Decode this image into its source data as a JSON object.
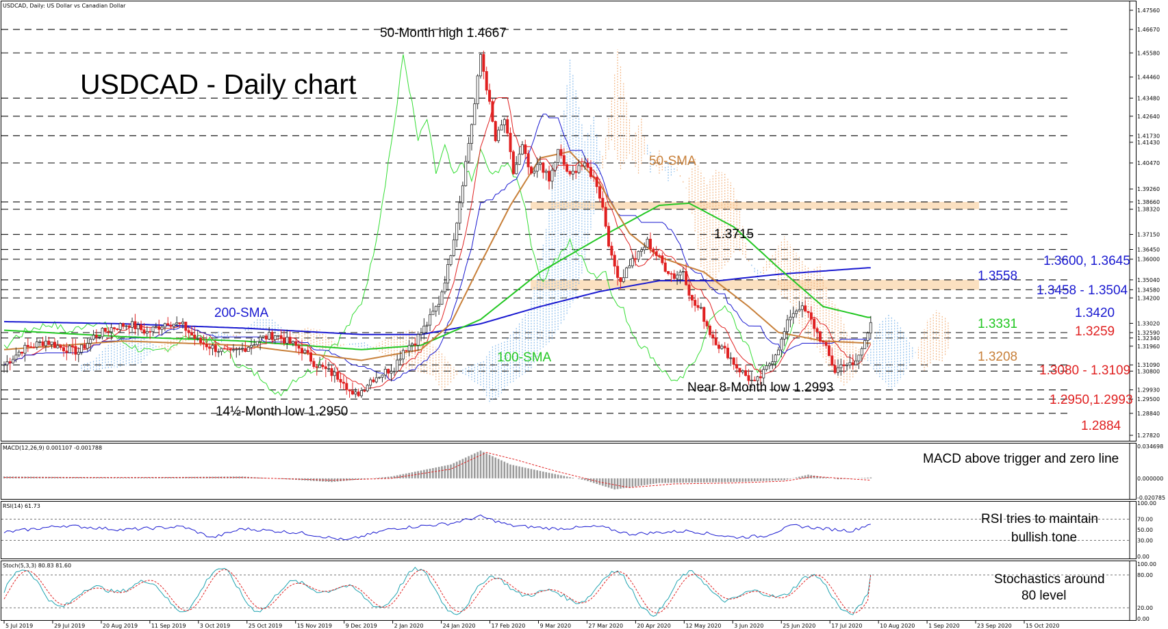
{
  "header": {
    "symbol_info": "USDCAD, Daily:  US Dollar vs Canadian Dollar"
  },
  "colors": {
    "price_up": "#2b2b2b",
    "price_down": "#e02020",
    "sma200": "#1818d0",
    "sma100": "#22c722",
    "sma50": "#c8803a",
    "chikou": "#33dd33",
    "tenkan": "#e02020",
    "kijun": "#1818d0",
    "cloud_blue": "#7fb6ea",
    "cloud_orange": "#f2b07a",
    "zone": "#fbe0c0",
    "macd_hist": "#9a9a9a",
    "rsi": "#1818d0",
    "stoch_k": "#1fa3b0",
    "stoch_d": "#e02020"
  },
  "chart_data": [
    {
      "type": "line",
      "title": "USDCAD - Daily chart",
      "x_ticks": [
        "5 Jul 2019",
        "29 Jul 2019",
        "20 Aug 2019",
        "11 Sep 2019",
        "3 Oct 2019",
        "25 Oct 2019",
        "15 Nov 2019",
        "9 Dec 2019",
        "2 Jan 2020",
        "24 Jan 2020",
        "17 Feb 2020",
        "9 Mar 2020",
        "27 Mar 2020",
        "20 Apr 2020",
        "12 May 2020",
        "3 Jun 2020",
        "25 Jun 2020",
        "17 Jul 2020",
        "10 Aug 2020",
        "1 Sep 2020",
        "23 Sep 2020",
        "15 Oct 2020"
      ],
      "y_ticks": [
        "1.47560",
        "1.46670",
        "1.45580",
        "1.44460",
        "1.43480",
        "1.42640",
        "1.41730",
        "1.41430",
        "1.40470",
        "1.39260",
        "1.38660",
        "1.38320",
        "1.37150",
        "1.36450",
        "1.36000",
        "1.35040",
        "1.34580",
        "1.34200",
        "1.33020",
        "1.32590",
        "1.32340",
        "1.31960",
        "1.31090",
        "1.30800",
        "1.29930",
        "1.29500",
        "1.28840",
        "1.27820"
      ],
      "ylim": [
        1.2782,
        1.4756
      ],
      "horizontal_levels": [
        1.4667,
        1.4558,
        1.4348,
        1.4264,
        1.4173,
        1.4047,
        1.3866,
        1.3832,
        1.3715,
        1.3645,
        1.36,
        1.3504,
        1.3458,
        1.342,
        1.3259,
        1.3234,
        1.3109,
        1.308,
        1.2993,
        1.295,
        1.2884
      ],
      "zones": [
        [
          1.3832,
          1.3866
        ],
        [
          1.3458,
          1.3504
        ]
      ],
      "close_path": [
        [
          0,
          1.311
        ],
        [
          6,
          1.318
        ],
        [
          10,
          1.32
        ],
        [
          14,
          1.322
        ],
        [
          19,
          1.319
        ],
        [
          25,
          1.317
        ],
        [
          30,
          1.324
        ],
        [
          36,
          1.328
        ],
        [
          42,
          1.33
        ],
        [
          48,
          1.326
        ],
        [
          55,
          1.331
        ],
        [
          60,
          1.329
        ],
        [
          65,
          1.322
        ],
        [
          70,
          1.319
        ],
        [
          76,
          1.316
        ],
        [
          81,
          1.319
        ],
        [
          86,
          1.323
        ],
        [
          91,
          1.325
        ],
        [
          96,
          1.321
        ],
        [
          100,
          1.318
        ],
        [
          104,
          1.312
        ],
        [
          106,
          1.31
        ],
        [
          110,
          1.307
        ],
        [
          114,
          1.304
        ],
        [
          117,
          1.296
        ],
        [
          120,
          1.299
        ],
        [
          123,
          1.304
        ],
        [
          127,
          1.307
        ],
        [
          131,
          1.31
        ],
        [
          134,
          1.318
        ],
        [
          138,
          1.322
        ],
        [
          142,
          1.33
        ],
        [
          146,
          1.34
        ],
        [
          149,
          1.356
        ],
        [
          152,
          1.378
        ],
        [
          155,
          1.405
        ],
        [
          158,
          1.432
        ],
        [
          160,
          1.455
        ],
        [
          162,
          1.44
        ],
        [
          165,
          1.415
        ],
        [
          168,
          1.425
        ],
        [
          171,
          1.4
        ],
        [
          174,
          1.412
        ],
        [
          177,
          1.398
        ],
        [
          180,
          1.405
        ],
        [
          183,
          1.396
        ],
        [
          186,
          1.41
        ],
        [
          190,
          1.398
        ],
        [
          193,
          1.404
        ],
        [
          196,
          1.402
        ],
        [
          199,
          1.395
        ],
        [
          201,
          1.384
        ],
        [
          204,
          1.36
        ],
        [
          207,
          1.35
        ],
        [
          210,
          1.358
        ],
        [
          213,
          1.362
        ],
        [
          216,
          1.368
        ],
        [
          219,
          1.362
        ],
        [
          222,
          1.356
        ],
        [
          225,
          1.352
        ],
        [
          228,
          1.355
        ],
        [
          231,
          1.34
        ],
        [
          234,
          1.336
        ],
        [
          237,
          1.326
        ],
        [
          240,
          1.32
        ],
        [
          243,
          1.316
        ],
        [
          246,
          1.31
        ],
        [
          249,
          1.306
        ],
        [
          252,
          1.302
        ],
        [
          255,
          1.307
        ],
        [
          258,
          1.314
        ],
        [
          261,
          1.322
        ],
        [
          264,
          1.334
        ],
        [
          267,
          1.338
        ],
        [
          270,
          1.334
        ],
        [
          273,
          1.326
        ],
        [
          276,
          1.318
        ],
        [
          279,
          1.308
        ],
        [
          282,
          1.312
        ],
        [
          285,
          1.31
        ],
        [
          288,
          1.318
        ],
        [
          291,
          1.332
        ]
      ],
      "series": [
        {
          "name": "200-SMA",
          "values": [
            [
              0,
              1.331
            ],
            [
              40,
              1.33
            ],
            [
              80,
              1.328
            ],
            [
              120,
              1.325
            ],
            [
              140,
              1.325
            ],
            [
              160,
              1.33
            ],
            [
              180,
              1.338
            ],
            [
              200,
              1.345
            ],
            [
              220,
              1.35
            ],
            [
              240,
              1.35
            ],
            [
              260,
              1.353
            ],
            [
              290,
              1.356
            ]
          ]
        },
        {
          "name": "100-SMA",
          "values": [
            [
              0,
              1.327
            ],
            [
              40,
              1.324
            ],
            [
              80,
              1.322
            ],
            [
              120,
              1.318
            ],
            [
              140,
              1.32
            ],
            [
              160,
              1.332
            ],
            [
              180,
              1.354
            ],
            [
              200,
              1.37
            ],
            [
              220,
              1.385
            ],
            [
              230,
              1.386
            ],
            [
              245,
              1.375
            ],
            [
              260,
              1.356
            ],
            [
              275,
              1.338
            ],
            [
              290,
              1.333
            ]
          ]
        },
        {
          "name": "50-SMA",
          "values": [
            [
              0,
              1.318
            ],
            [
              40,
              1.322
            ],
            [
              80,
              1.32
            ],
            [
              120,
              1.313
            ],
            [
              140,
              1.318
            ],
            [
              150,
              1.33
            ],
            [
              160,
              1.358
            ],
            [
              170,
              1.385
            ],
            [
              180,
              1.407
            ],
            [
              190,
              1.41
            ],
            [
              200,
              1.395
            ],
            [
              210,
              1.372
            ],
            [
              220,
              1.361
            ],
            [
              235,
              1.354
            ],
            [
              250,
              1.338
            ],
            [
              260,
              1.326
            ],
            [
              275,
              1.322
            ],
            [
              290,
              1.321
            ]
          ]
        }
      ]
    },
    {
      "type": "bar",
      "title": "MACD(12,26,9) 0.001107 -0.001788",
      "y_ticks": [
        "0.034698",
        "0.000000",
        "-0.020785"
      ],
      "ylim": [
        -0.020785,
        0.034698
      ],
      "histogram": [
        [
          0,
          0.002
        ],
        [
          40,
          0.001
        ],
        [
          80,
          0.002
        ],
        [
          110,
          -0.004
        ],
        [
          130,
          0.002
        ],
        [
          150,
          0.015
        ],
        [
          160,
          0.03
        ],
        [
          170,
          0.015
        ],
        [
          180,
          0.008
        ],
        [
          195,
          -0.002
        ],
        [
          205,
          -0.012
        ],
        [
          220,
          -0.005
        ],
        [
          245,
          -0.004
        ],
        [
          262,
          -0.002
        ],
        [
          270,
          0.004
        ],
        [
          280,
          -0.001
        ],
        [
          291,
          0.001
        ]
      ],
      "signal": [
        [
          0,
          0.001
        ],
        [
          40,
          0.001
        ],
        [
          80,
          0.001
        ],
        [
          110,
          -0.002
        ],
        [
          130,
          0.0
        ],
        [
          150,
          0.01
        ],
        [
          162,
          0.028
        ],
        [
          172,
          0.02
        ],
        [
          185,
          0.008
        ],
        [
          200,
          -0.004
        ],
        [
          210,
          -0.01
        ],
        [
          225,
          -0.006
        ],
        [
          245,
          -0.005
        ],
        [
          262,
          -0.003
        ],
        [
          272,
          0.002
        ],
        [
          291,
          -0.002
        ]
      ]
    },
    {
      "type": "line",
      "title": "RSI(14) 61.73",
      "y_ticks": [
        "100.00",
        "70.00",
        "50.00",
        "30.00",
        "0.00"
      ],
      "ylim": [
        0,
        100
      ],
      "values": [
        [
          0,
          45
        ],
        [
          20,
          58
        ],
        [
          40,
          50
        ],
        [
          60,
          56
        ],
        [
          70,
          35
        ],
        [
          80,
          52
        ],
        [
          100,
          44
        ],
        [
          115,
          30
        ],
        [
          130,
          52
        ],
        [
          150,
          62
        ],
        [
          160,
          75
        ],
        [
          170,
          58
        ],
        [
          185,
          52
        ],
        [
          200,
          56
        ],
        [
          210,
          42
        ],
        [
          230,
          48
        ],
        [
          245,
          36
        ],
        [
          255,
          38
        ],
        [
          265,
          58
        ],
        [
          275,
          52
        ],
        [
          285,
          48
        ],
        [
          291,
          61.73
        ]
      ]
    },
    {
      "type": "line",
      "title": "Stoch(5,3,3) 80.83 81.60",
      "y_ticks": [
        "100.00",
        "80.00",
        "20.00",
        "0.00"
      ],
      "ylim": [
        0,
        100
      ],
      "k_last": 80.83,
      "d_last": 81.6
    }
  ],
  "annotations": {
    "fifty_month_high": "50-Month high 1.4667",
    "sma200_label": "200-SMA",
    "sma100_label": "100-SMA",
    "sma50_label": "50-SMA",
    "low_14": "14½-Month low 1.2950",
    "near_8_month_low": "Near 8-Month low 1.2993",
    "level_13715": "1.3715",
    "level_13600": "1.3600, 1.3645",
    "level_13558": "1.3558",
    "level_13458": "1.3458 - 1.3504",
    "level_13420": "1.3420",
    "level_13331": "1.3331",
    "level_13259": "1.3259",
    "level_13208": "1.3208",
    "level_13080": "1.3080 - 1.3109",
    "level_12950": "1.2950,1.2993",
    "level_12884": "1.2884",
    "macd_note": "MACD above trigger and zero line",
    "rsi_note_1": "RSI tries to maintain",
    "rsi_note_2": "bullish tone",
    "stoch_note_1": "Stochastics around",
    "stoch_note_2": "80 level"
  }
}
